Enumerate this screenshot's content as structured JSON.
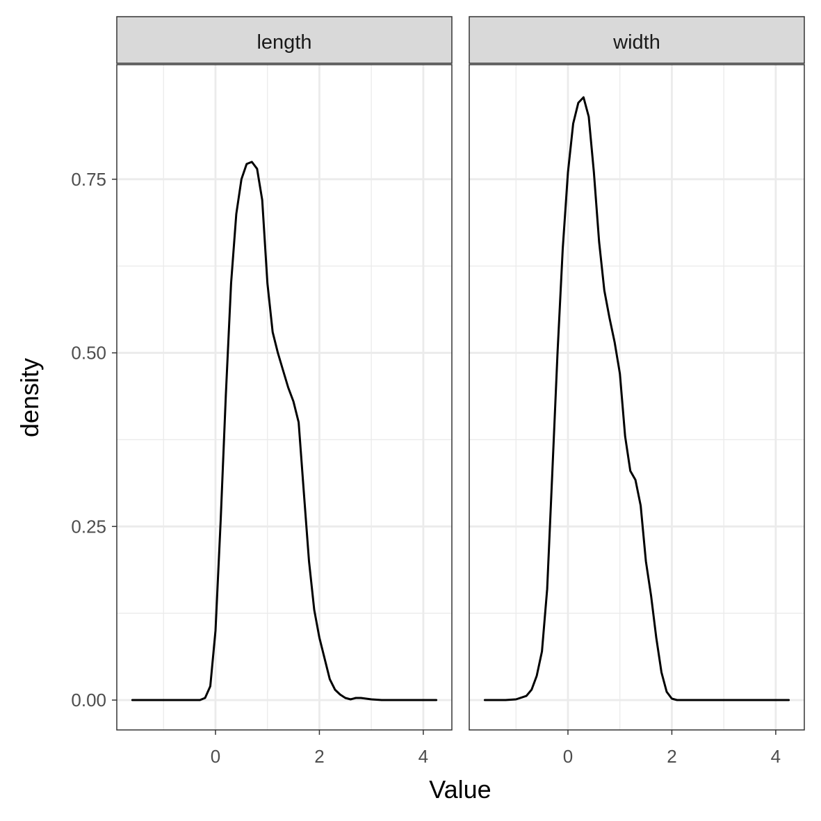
{
  "chart_data": {
    "type": "line",
    "xlabel": "Value",
    "ylabel": "density",
    "xlim": [
      -1.9,
      4.55
    ],
    "ylim": [
      -0.043,
      0.915
    ],
    "x_ticks": [
      0,
      2,
      4
    ],
    "x_tick_labels": [
      "0",
      "2",
      "4"
    ],
    "y_ticks": [
      0,
      0.25,
      0.5,
      0.75
    ],
    "y_tick_labels": [
      "0.00",
      "0.25",
      "0.50",
      "0.75"
    ],
    "grid": true,
    "colors": {
      "line": "#000000",
      "grid": "#ebebeb",
      "strip_fill": "#d9d9d9",
      "panel_border": "#333333"
    },
    "panels": [
      {
        "strip": "length",
        "points": [
          [
            -1.6,
            0.0
          ],
          [
            -0.5,
            0.0
          ],
          [
            -0.3,
            0.0
          ],
          [
            -0.2,
            0.003
          ],
          [
            -0.1,
            0.02
          ],
          [
            0.0,
            0.1
          ],
          [
            0.1,
            0.26
          ],
          [
            0.2,
            0.44
          ],
          [
            0.3,
            0.6
          ],
          [
            0.4,
            0.7
          ],
          [
            0.5,
            0.75
          ],
          [
            0.6,
            0.772
          ],
          [
            0.7,
            0.775
          ],
          [
            0.8,
            0.765
          ],
          [
            0.9,
            0.72
          ],
          [
            1.0,
            0.6
          ],
          [
            1.1,
            0.53
          ],
          [
            1.2,
            0.5
          ],
          [
            1.3,
            0.475
          ],
          [
            1.4,
            0.45
          ],
          [
            1.5,
            0.43
          ],
          [
            1.6,
            0.4
          ],
          [
            1.7,
            0.3
          ],
          [
            1.8,
            0.2
          ],
          [
            1.9,
            0.13
          ],
          [
            2.0,
            0.09
          ],
          [
            2.1,
            0.06
          ],
          [
            2.2,
            0.03
          ],
          [
            2.3,
            0.015
          ],
          [
            2.4,
            0.008
          ],
          [
            2.5,
            0.003
          ],
          [
            2.6,
            0.001
          ],
          [
            2.7,
            0.003
          ],
          [
            2.8,
            0.003
          ],
          [
            2.9,
            0.002
          ],
          [
            3.0,
            0.001
          ],
          [
            3.2,
            0.0
          ],
          [
            4.25,
            0.0
          ]
        ]
      },
      {
        "strip": "width",
        "points": [
          [
            -1.6,
            0.0
          ],
          [
            -1.2,
            0.0
          ],
          [
            -1.0,
            0.001
          ],
          [
            -0.8,
            0.006
          ],
          [
            -0.7,
            0.015
          ],
          [
            -0.6,
            0.035
          ],
          [
            -0.5,
            0.07
          ],
          [
            -0.4,
            0.16
          ],
          [
            -0.3,
            0.33
          ],
          [
            -0.2,
            0.5
          ],
          [
            -0.1,
            0.65
          ],
          [
            0.0,
            0.76
          ],
          [
            0.1,
            0.83
          ],
          [
            0.2,
            0.86
          ],
          [
            0.3,
            0.868
          ],
          [
            0.4,
            0.84
          ],
          [
            0.5,
            0.76
          ],
          [
            0.6,
            0.66
          ],
          [
            0.7,
            0.59
          ],
          [
            0.8,
            0.55
          ],
          [
            0.9,
            0.515
          ],
          [
            1.0,
            0.47
          ],
          [
            1.1,
            0.38
          ],
          [
            1.2,
            0.33
          ],
          [
            1.3,
            0.317
          ],
          [
            1.4,
            0.28
          ],
          [
            1.5,
            0.2
          ],
          [
            1.6,
            0.15
          ],
          [
            1.7,
            0.09
          ],
          [
            1.8,
            0.04
          ],
          [
            1.9,
            0.012
          ],
          [
            2.0,
            0.002
          ],
          [
            2.1,
            0.0
          ],
          [
            4.25,
            0.0
          ]
        ]
      }
    ]
  }
}
